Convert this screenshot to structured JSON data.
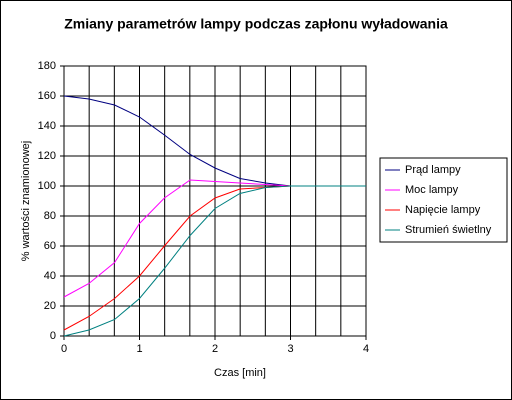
{
  "chart_data": {
    "type": "line",
    "title": "Zmiany parametrów lampy podczas zapłonu wyładowania",
    "x_label": "Czas [min]",
    "y_label": "%  wartości znamionowej",
    "x": [
      0,
      0.33,
      0.67,
      1,
      1.33,
      1.67,
      2,
      2.33,
      2.67,
      3,
      3.33,
      3.67,
      4
    ],
    "series": [
      {
        "name": "Prąd lampy",
        "color": "#000080",
        "values": [
          160,
          158,
          154,
          146,
          134,
          121,
          112,
          105,
          102,
          100,
          100,
          100,
          100
        ]
      },
      {
        "name": "Moc lampy",
        "color": "#ff00ff",
        "values": [
          26,
          35,
          49,
          75,
          92,
          104,
          103,
          102,
          101,
          100,
          100,
          100,
          100
        ]
      },
      {
        "name": "Napięcie lampy",
        "color": "#ff0000",
        "values": [
          4,
          13,
          25,
          40,
          60,
          80,
          92,
          98,
          99,
          100,
          100,
          100,
          100
        ]
      },
      {
        "name": "Strumień świetlny",
        "color": "#008080",
        "values": [
          0,
          4,
          11,
          25,
          45,
          67,
          85,
          95,
          99,
          100,
          100,
          100,
          100
        ]
      }
    ],
    "xlim": [
      0,
      4
    ],
    "xticks": [
      0,
      1,
      2,
      3,
      4
    ],
    "ylim": [
      0,
      180
    ],
    "yticks": [
      0,
      20,
      40,
      60,
      80,
      100,
      120,
      140,
      160,
      180
    ],
    "grid": true,
    "legend": "right"
  }
}
